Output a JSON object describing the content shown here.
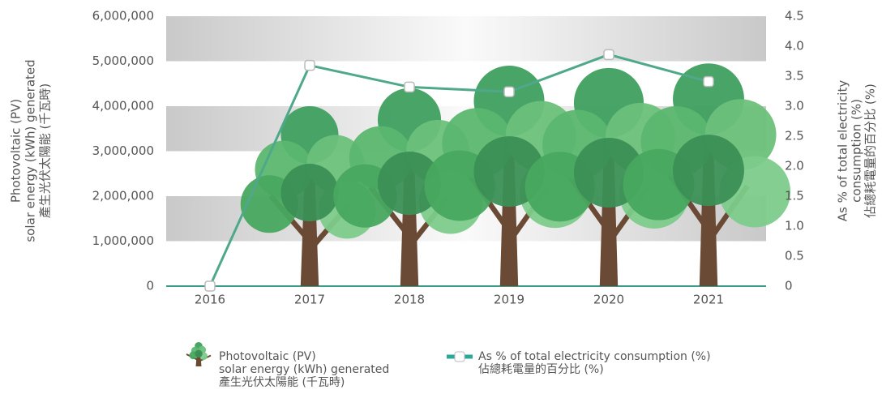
{
  "chart_data": {
    "type": "pictorial-bar-line",
    "y_label": [
      "Photovoltaic (PV)",
      "solar energy (kWh) generated",
      "產生光伏太陽能 (千瓦時)"
    ],
    "y2_label": [
      "As % of total electricity",
      "consumption (%)",
      "佔總耗電量的百分比 (%)"
    ],
    "categories": [
      "2016",
      "2017",
      "2018",
      "2019",
      "2020",
      "2021"
    ],
    "series": [
      {
        "name": [
          "Photovoltaic (PV)",
          "solar energy (kWh) generated",
          "產生光伏太陽能 (千瓦時)"
        ],
        "color": "#4caf6e",
        "values": [
          0,
          4000000,
          4400000,
          4900000,
          4850000,
          4950000
        ]
      },
      {
        "name": [
          "As % of total electricity consumption (%)",
          "佔總耗電量的百分比 (%)"
        ],
        "color": "#4fa88a",
        "axis": "y2",
        "values": [
          0,
          3.68,
          3.32,
          3.24,
          3.86,
          3.41
        ]
      }
    ],
    "ylim": [
      0,
      6000000
    ],
    "yticks": [
      0,
      {
        "value": 1000000,
        "label": "1,000,000"
      },
      {
        "value": 2000000,
        "label": "2,000,000"
      },
      {
        "value": 3000000,
        "label": "3,000,000"
      },
      {
        "value": 4000000,
        "label": "4,000,000"
      },
      {
        "value": 5000000,
        "label": "5,000,000"
      },
      {
        "value": 6000000,
        "label": "6,000,000"
      }
    ],
    "y2lim": [
      0,
      4.5
    ],
    "y2ticks": [
      0,
      0.5,
      {
        "value": 1,
        "label": "1.0"
      },
      1.5,
      {
        "value": 2,
        "label": "2.0"
      },
      2.5,
      {
        "value": 3,
        "label": "3.0"
      },
      3.5,
      {
        "value": 4,
        "label": "4.0"
      },
      4.5
    ]
  }
}
